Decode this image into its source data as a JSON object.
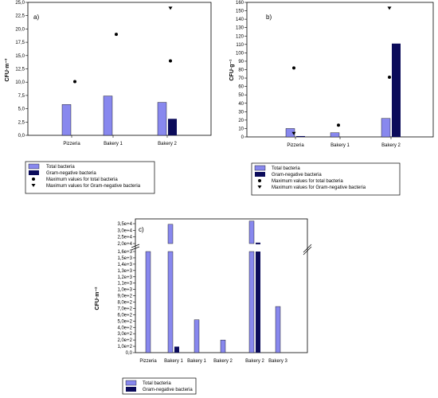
{
  "colors": {
    "total": "#8888ee",
    "gram": "#0b0b5a",
    "axis": "#000000"
  },
  "chart_data": [
    {
      "panel": "a)",
      "type": "bar",
      "ylabel": "CFU·m⁻³",
      "ylim": [
        0,
        25
      ],
      "yticks": [
        "0,0",
        "2,5",
        "5,0",
        "7,5",
        "10,0",
        "12,5",
        "15,0",
        "17,5",
        "20,0",
        "22,5",
        "25,0"
      ],
      "categories": [
        "Pizzeria",
        "Bakery 1",
        "Bakery 2"
      ],
      "series": [
        {
          "name": "Total bacteria",
          "values": [
            5.8,
            7.4,
            6.2
          ]
        },
        {
          "name": "Gram-negative bacteria",
          "values": [
            null,
            null,
            3.1
          ]
        }
      ],
      "max_total": [
        10.1,
        19.0,
        14.0
      ],
      "max_gram": [
        null,
        null,
        23.9
      ],
      "legend": [
        "Total bacteria",
        "Gram-negative bacteria",
        "Maximum values for total bacteria",
        "Maximum values for Gram-negative bacteria"
      ]
    },
    {
      "panel": "b)",
      "type": "bar",
      "ylabel": "CFU·g⁻¹",
      "ylim": [
        0,
        160
      ],
      "yticks": [
        "0",
        "10",
        "20",
        "30",
        "40",
        "50",
        "60",
        "70",
        "80",
        "90",
        "100",
        "110",
        "120",
        "130",
        "140",
        "150",
        "160"
      ],
      "categories": [
        "Pizzeria",
        "Bakery 1",
        "Bakery 2"
      ],
      "series": [
        {
          "name": "Total bacteria",
          "values": [
            10,
            5,
            22
          ]
        },
        {
          "name": "Gram-negative bacteria",
          "values": [
            1,
            null,
            111
          ]
        }
      ],
      "max_total": [
        82,
        14,
        71
      ],
      "max_gram": [
        4,
        null,
        153
      ],
      "legend": [
        "Total bacteria",
        "Gram-negative bacteria",
        "Maximum values for total bacteria",
        "Maximum values for Gram-negative bacteria"
      ]
    },
    {
      "panel": "c)",
      "type": "bar",
      "ylabel": "CFU·m⁻²",
      "yticks_lower": [
        "0,0",
        "1,0e+2",
        "2,0e+2",
        "3,0e+2",
        "4,0e+2",
        "5,0e+2",
        "6,0e+2",
        "7,0e+2",
        "8,0e+2",
        "9,0e+2",
        "1,0e+3",
        "1,1e+3",
        "1,2e+3",
        "1,3e+3",
        "1,4e+3",
        "1,5e+3",
        "1,6e+3"
      ],
      "yticks_upper": [
        "2,0e+4",
        "2,5e+4",
        "3,0e+4",
        "3,5e+4"
      ],
      "categories": [
        "Pizzeria",
        "Bakery 1",
        "Bakery 1",
        "Bakery 2",
        "Bakery 2",
        "Bakery 3"
      ],
      "series": [
        {
          "name": "Total bacteria",
          "values": [
            1600,
            34500,
            520,
            200,
            37000,
            730
          ]
        },
        {
          "name": "Gram-negative bacteria",
          "values": [
            null,
            95,
            null,
            null,
            20100,
            null
          ]
        }
      ],
      "legend": [
        "Total bacteria",
        "Gram-negative bacteria"
      ]
    }
  ]
}
